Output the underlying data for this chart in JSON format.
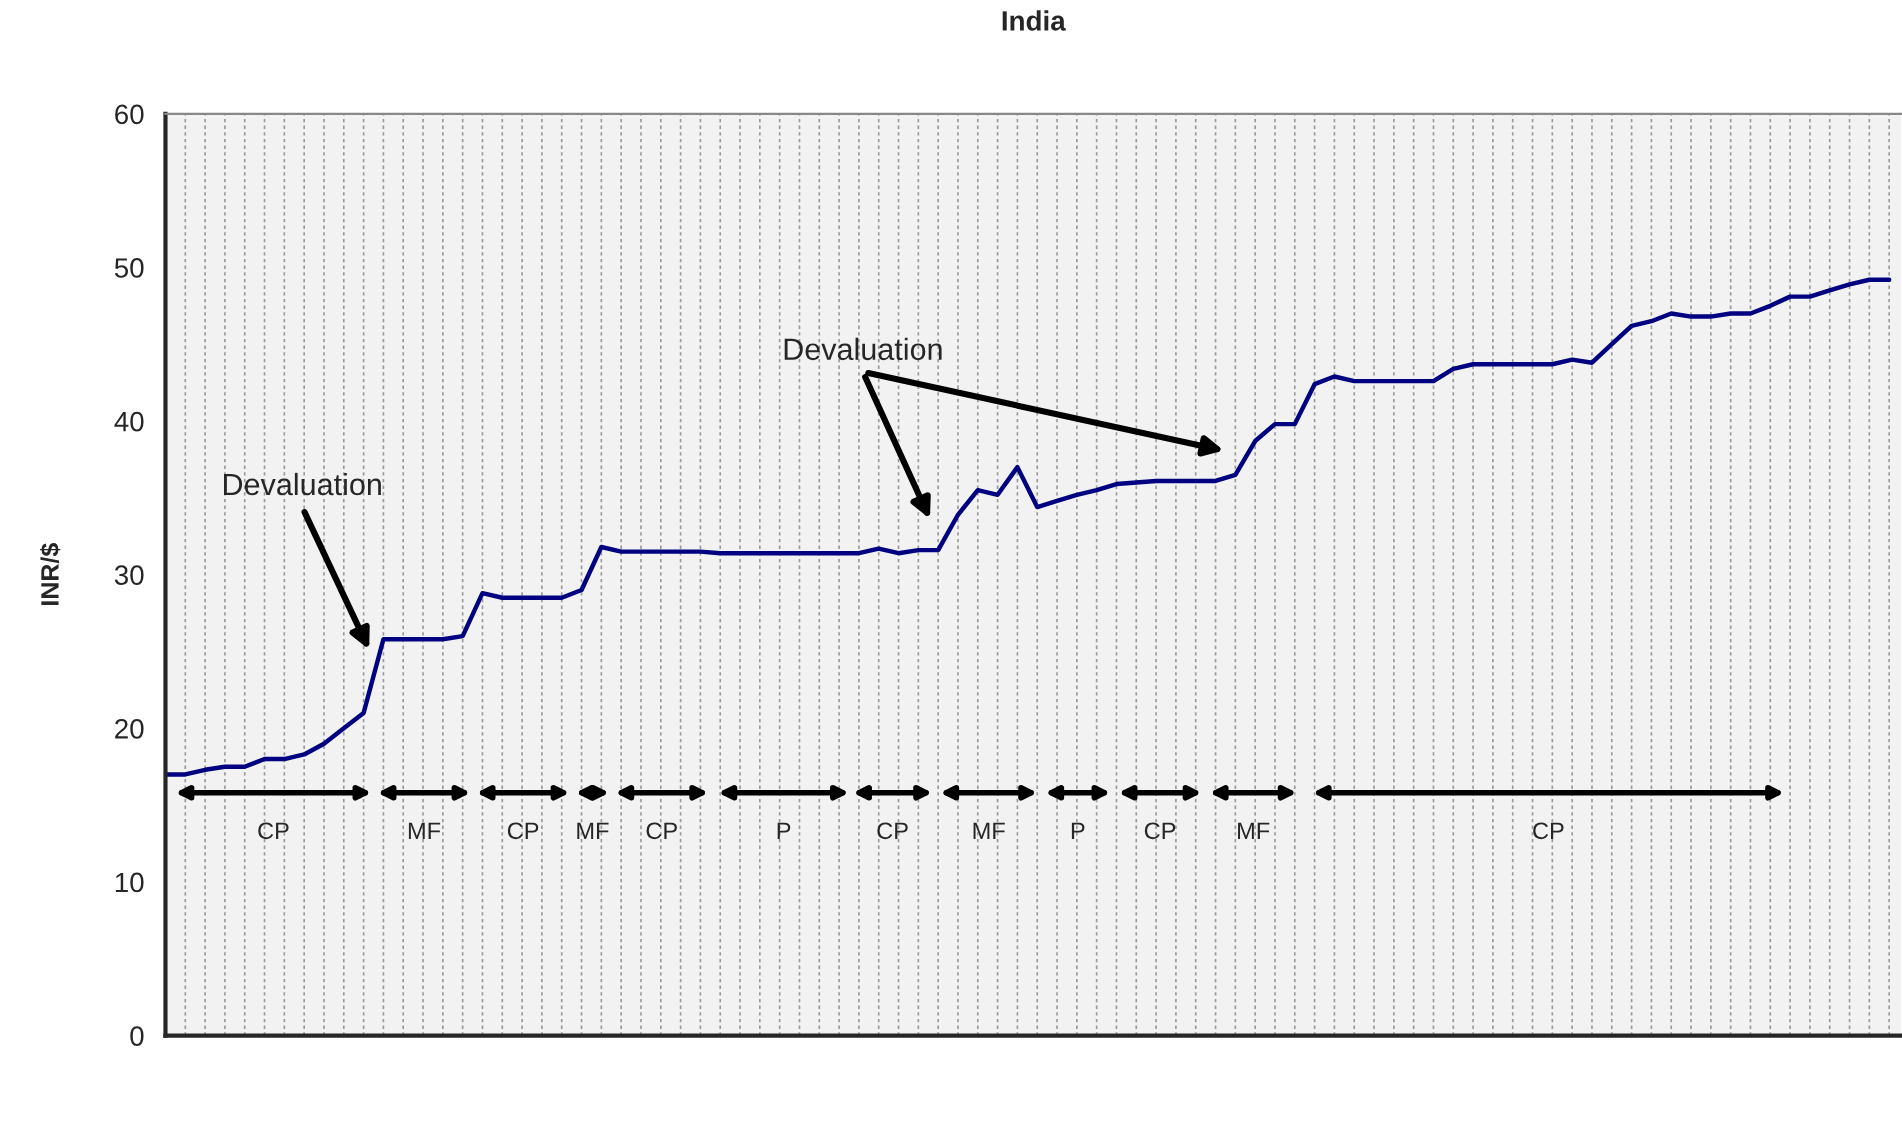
{
  "chart_data": {
    "type": "line",
    "title": "India",
    "ylabel": "INR/$",
    "categories": [
      null,
      null,
      null,
      null,
      null,
      null,
      null,
      null,
      null,
      null,
      null,
      null,
      null,
      null,
      null,
      null,
      null,
      null,
      null,
      null,
      null,
      null,
      null,
      null,
      null,
      null,
      null,
      null,
      null,
      null,
      null,
      null,
      null,
      null,
      null,
      null,
      null,
      null,
      null,
      null,
      null,
      null,
      null,
      null,
      null,
      null,
      null,
      null,
      null,
      null,
      null,
      null,
      null,
      null,
      null,
      null,
      null,
      null,
      null,
      null,
      null,
      null,
      null,
      null,
      null,
      null,
      null,
      null,
      null,
      null,
      null,
      null,
      null,
      null,
      null,
      null,
      null,
      null,
      null,
      null,
      null,
      null,
      null,
      null,
      null,
      null,
      null,
      null
    ],
    "series": [
      {
        "color": "#000080",
        "values": [
          17.0,
          17.0,
          17.3,
          17.5,
          17.5,
          18.0,
          18.0,
          18.3,
          19.0,
          20.0,
          21.0,
          25.8,
          25.8,
          25.8,
          25.8,
          26.0,
          28.8,
          28.5,
          28.5,
          28.5,
          28.5,
          29.0,
          31.8,
          31.5,
          31.5,
          31.5,
          31.5,
          31.5,
          31.4,
          31.4,
          31.4,
          31.4,
          31.4,
          31.4,
          31.4,
          31.4,
          31.7,
          31.4,
          31.6,
          31.6,
          33.9,
          35.5,
          35.2,
          37.0,
          34.4,
          34.8,
          35.2,
          35.5,
          35.9,
          36.0,
          36.1,
          36.1,
          36.1,
          36.1,
          36.5,
          38.7,
          39.8,
          39.8,
          42.4,
          42.9,
          42.6,
          42.6,
          42.6,
          42.6,
          42.6,
          43.4,
          43.7,
          43.7,
          43.7,
          43.7,
          43.7,
          44.0,
          43.8,
          45.0,
          46.2,
          46.5,
          47.0,
          46.8,
          46.8,
          47.0,
          47.0,
          47.5,
          48.1,
          48.1,
          48.5,
          48.9,
          49.2,
          49.2
        ]
      }
    ],
    "ylim": [
      0,
      60
    ],
    "yticks": [
      0,
      10,
      20,
      30,
      40,
      50,
      60
    ],
    "grid": "x",
    "annotations": [
      "Devaluation",
      "Devaluation",
      "CP",
      "MF",
      "CP",
      "MF",
      "CP",
      "P",
      "CP",
      "MF",
      "P",
      "CP",
      "MF",
      "CP"
    ]
  }
}
